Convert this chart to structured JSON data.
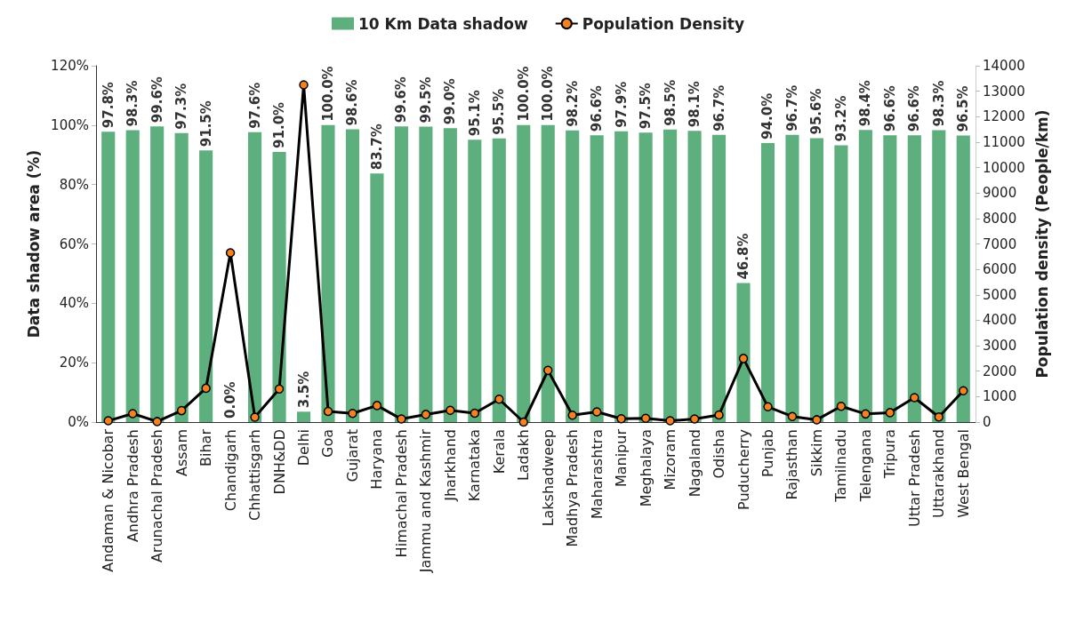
{
  "chart_data": {
    "type": "bar",
    "categories": [
      "Andaman & Nicobar",
      "Andhra Pradesh",
      "Arunachal Pradesh",
      "Assam",
      "Bihar",
      "Chandigarh",
      "Chhattisgarh",
      "DNH&DD",
      "Delhi",
      "Goa",
      "Gujarat",
      "Haryana",
      "Himachal Pradesh",
      "Jammu and Kashmir",
      "Jharkhand",
      "Karnataka",
      "Kerala",
      "Ladakh",
      "Lakshadweep",
      "Madhya Pradesh",
      "Maharashtra",
      "Manipur",
      "Meghalaya",
      "Mizoram",
      "Nagaland",
      "Odisha",
      "Puducherry",
      "Punjab",
      "Rajasthan",
      "Sikkim",
      "Tamilnadu",
      "Telengana",
      "Tripura",
      "Uttar Pradesh",
      "Uttarakhand",
      "West Bengal"
    ],
    "series": [
      {
        "name": "10 Km Data shadow",
        "color": "#5daf7d",
        "values": [
          97.8,
          98.3,
          99.6,
          97.3,
          91.5,
          0.0,
          97.6,
          91.0,
          3.5,
          100.0,
          98.6,
          83.7,
          99.6,
          99.5,
          99.0,
          95.1,
          95.5,
          100.0,
          100.0,
          98.2,
          96.6,
          97.9,
          97.5,
          98.5,
          98.1,
          96.7,
          46.8,
          94.0,
          96.7,
          95.6,
          93.2,
          98.4,
          96.6,
          96.6,
          98.3,
          96.5
        ],
        "value_labels": [
          "97.8%",
          "98.3%",
          "99.6%",
          "97.3%",
          "91.5%",
          "0.0%",
          "97.6%",
          "91.0%",
          "3.5%",
          "100.0%",
          "98.6%",
          "83.7%",
          "99.6%",
          "99.5%",
          "99.0%",
          "95.1%",
          "95.5%",
          "100.0%",
          "100.0%",
          "98.2%",
          "96.6%",
          "97.9%",
          "97.5%",
          "98.5%",
          "98.1%",
          "96.7%",
          "46.8%",
          "94.0%",
          "96.7%",
          "95.6%",
          "93.2%",
          "98.4%",
          "96.6%",
          "96.6%",
          "98.3%",
          "96.5%"
        ]
      },
      {
        "name": "Population Density",
        "type": "line",
        "axis": "y2",
        "color": "#000000",
        "values": [
          50,
          330,
          20,
          450,
          1330,
          6650,
          190,
          1300,
          13250,
          420,
          340,
          650,
          120,
          300,
          460,
          350,
          900,
          0,
          2030,
          270,
          400,
          130,
          150,
          50,
          120,
          280,
          2500,
          600,
          220,
          90,
          620,
          320,
          370,
          960,
          200,
          1230
        ]
      }
    ],
    "ylabel": "Data shadow area (%)",
    "y2label": "Population density (People/km)",
    "ylim": [
      0,
      120
    ],
    "yticks": [
      {
        "value": 0,
        "label": "0%"
      },
      {
        "value": 20,
        "label": "20%"
      },
      {
        "value": 40,
        "label": "40%"
      },
      {
        "value": 60,
        "label": "60%"
      },
      {
        "value": 80,
        "label": "80%"
      },
      {
        "value": 100,
        "label": "100%"
      },
      {
        "value": 120,
        "label": "120%"
      }
    ],
    "y2lim": [
      0,
      14000
    ],
    "y2ticks": [
      0,
      1000,
      2000,
      3000,
      4000,
      5000,
      6000,
      7000,
      8000,
      9000,
      10000,
      11000,
      12000,
      13000,
      14000
    ],
    "legend": "top",
    "marker": "circle",
    "line_style": "solid",
    "grid": false
  }
}
